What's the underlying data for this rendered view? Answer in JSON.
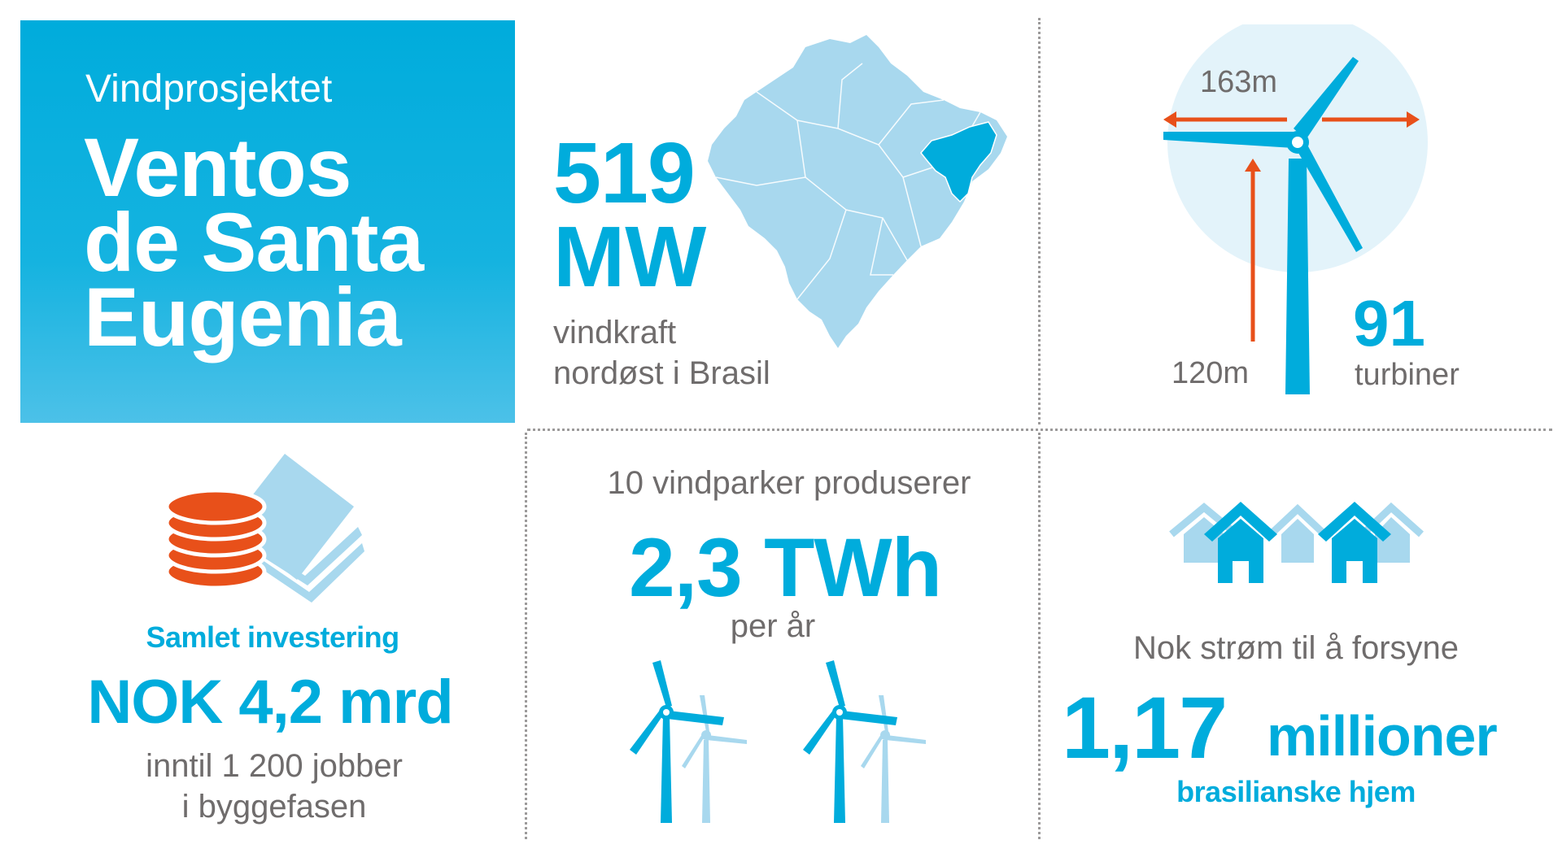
{
  "title_panel": {
    "subtitle": "Vindprosjektet",
    "name_lines": [
      "Ventos",
      "de Santa",
      "Eugenia"
    ]
  },
  "capacity": {
    "value": "519",
    "unit": "MW",
    "desc_line1": "vindkraft",
    "desc_line2": "nordøst i Brasil"
  },
  "turbine": {
    "rotor_diameter": "163m",
    "hub_height": "120m",
    "count": "91",
    "count_label": "turbiner"
  },
  "investment": {
    "label": "Samlet investering",
    "value": "NOK 4,2 mrd",
    "jobs_line1": "inntil 1 200 jobber",
    "jobs_line2": "i byggefasen"
  },
  "production": {
    "parks_label": "10 vindparker produserer",
    "value": "2,3 TWh",
    "per": "per år"
  },
  "homes": {
    "supply_label": "Nok strøm til å forsyne",
    "number": "1,17",
    "unit": "millioner",
    "desc": "brasilianske hjem"
  },
  "colors": {
    "brand_blue": "#00ACDC",
    "light_blue": "#A8D8EE",
    "orange": "#E8501A",
    "gray_text": "#6f6c6c"
  },
  "icons": [
    "brazil-map-icon",
    "wind-turbine-icon",
    "coins-and-banknotes-icon",
    "wind-turbines-icon",
    "houses-icon"
  ]
}
